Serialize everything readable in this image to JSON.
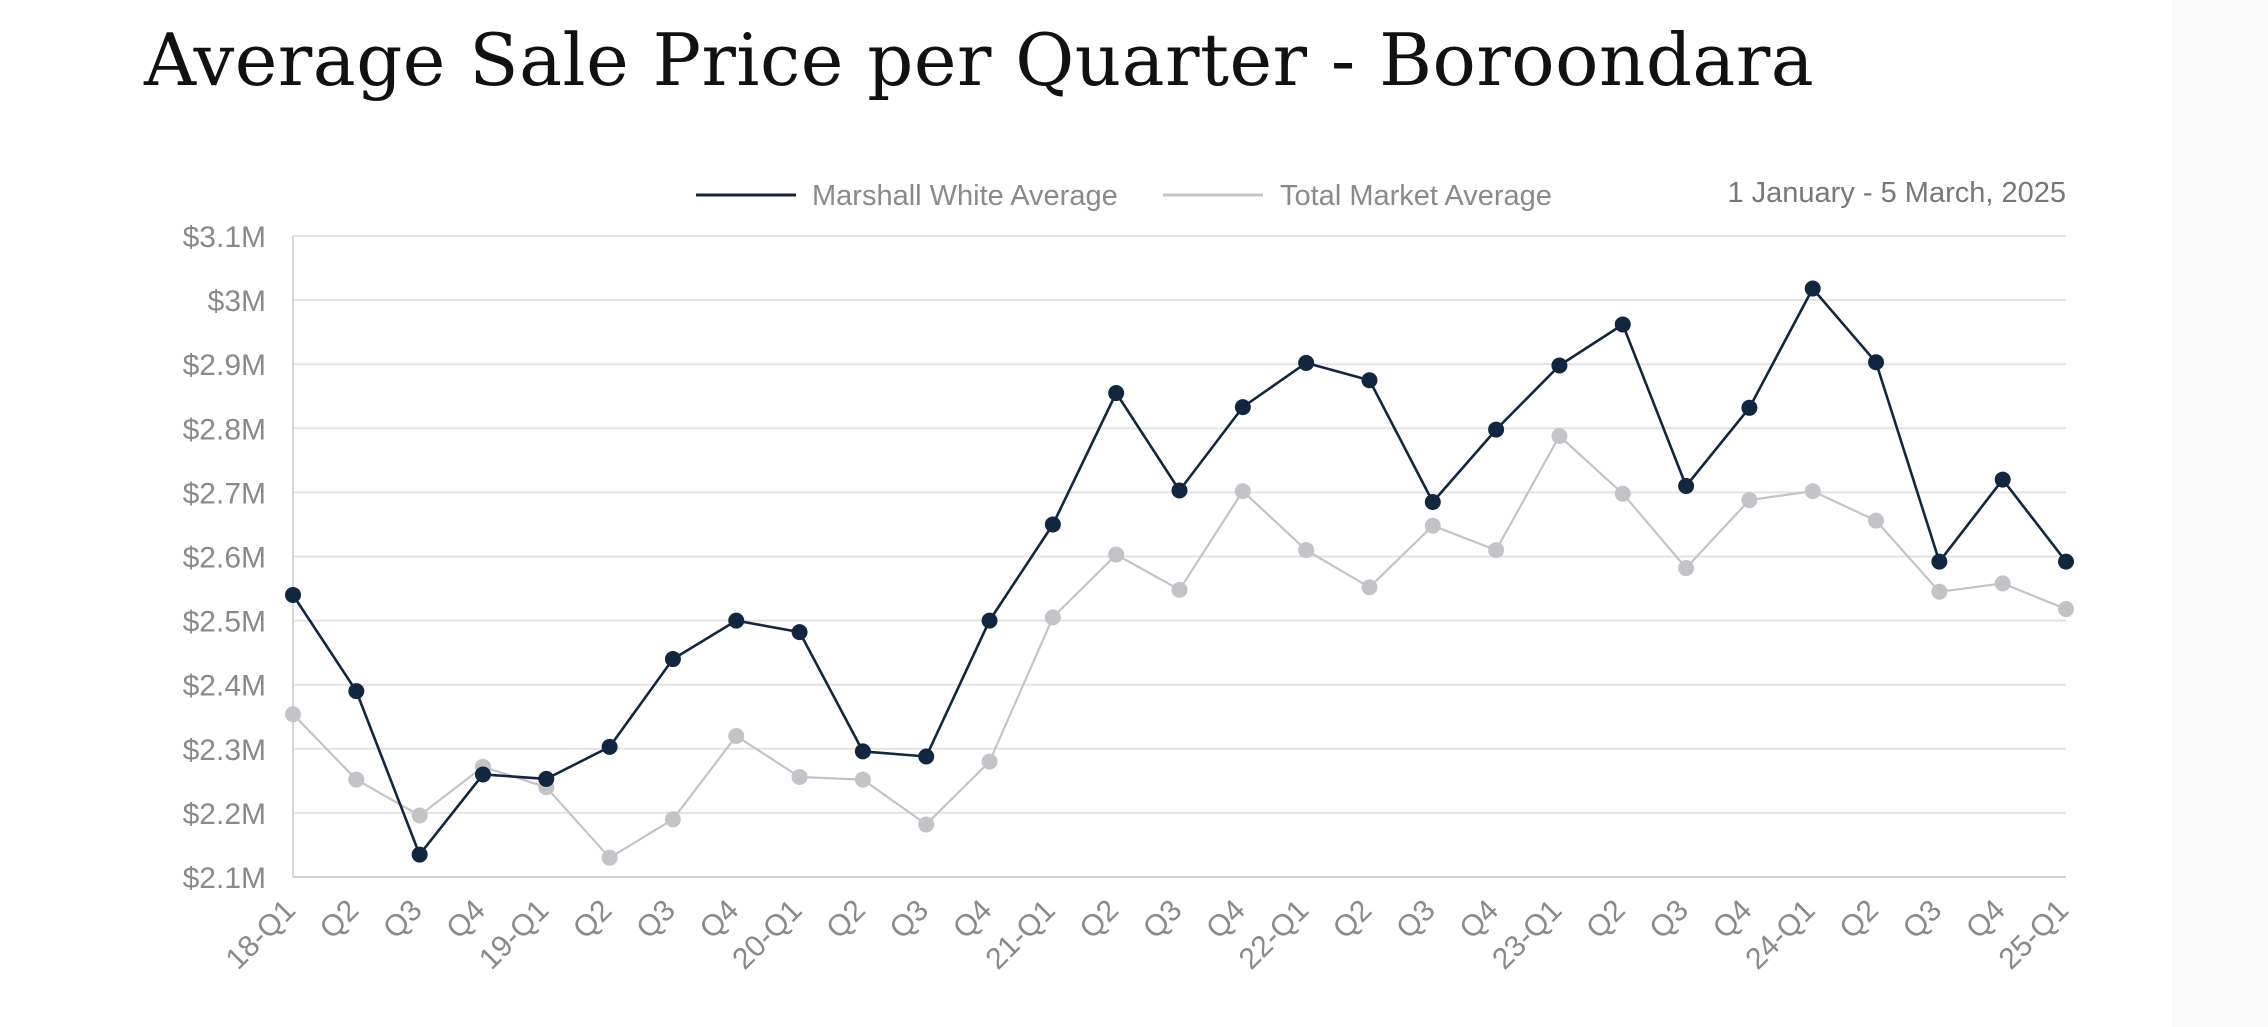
{
  "chart_data": {
    "type": "line",
    "title": "Average Sale Price per Quarter - Boroondara",
    "subtitle": "1 January - 5 March, 2025",
    "xlabel": "",
    "ylabel": "",
    "ylim": [
      2.1,
      3.1
    ],
    "yticks": [
      2.1,
      2.2,
      2.3,
      2.4,
      2.5,
      2.6,
      2.7,
      2.8,
      2.9,
      3.0,
      3.1
    ],
    "ytick_labels": [
      "$2.1M",
      "$2.2M",
      "$2.3M",
      "$2.4M",
      "$2.5M",
      "$2.6M",
      "$2.7M",
      "$2.8M",
      "$2.9M",
      "$3M",
      "$3.1M"
    ],
    "grid": true,
    "legend_position": "top",
    "categories": [
      "18-Q1",
      "Q2",
      "Q3",
      "Q4",
      "19-Q1",
      "Q2",
      "Q3",
      "Q4",
      "20-Q1",
      "Q2",
      "Q3",
      "Q4",
      "21-Q1",
      "Q2",
      "Q3",
      "Q4",
      "22-Q1",
      "Q2",
      "Q3",
      "Q4",
      "23-Q1",
      "Q2",
      "Q3",
      "Q4",
      "24-Q1",
      "Q2",
      "Q3",
      "Q4",
      "25-Q1"
    ],
    "series": [
      {
        "name": "Marshall White Average",
        "color": "#13263f",
        "values": [
          2.54,
          2.39,
          2.135,
          2.26,
          2.253,
          2.303,
          2.44,
          2.5,
          2.482,
          2.296,
          2.288,
          2.5,
          2.65,
          2.855,
          2.703,
          2.833,
          2.902,
          2.875,
          2.685,
          2.798,
          2.898,
          2.962,
          2.71,
          2.832,
          3.018,
          2.903,
          2.592,
          2.72,
          2.592
        ]
      },
      {
        "name": "Total Market Average",
        "color": "#c4c4c8",
        "values": [
          2.354,
          2.252,
          2.196,
          2.272,
          2.24,
          2.13,
          2.19,
          2.32,
          2.256,
          2.252,
          2.182,
          2.28,
          2.505,
          2.603,
          2.548,
          2.702,
          2.61,
          2.552,
          2.648,
          2.61,
          2.788,
          2.698,
          2.582,
          2.688,
          2.702,
          2.656,
          2.545,
          2.558,
          2.518
        ]
      }
    ]
  }
}
